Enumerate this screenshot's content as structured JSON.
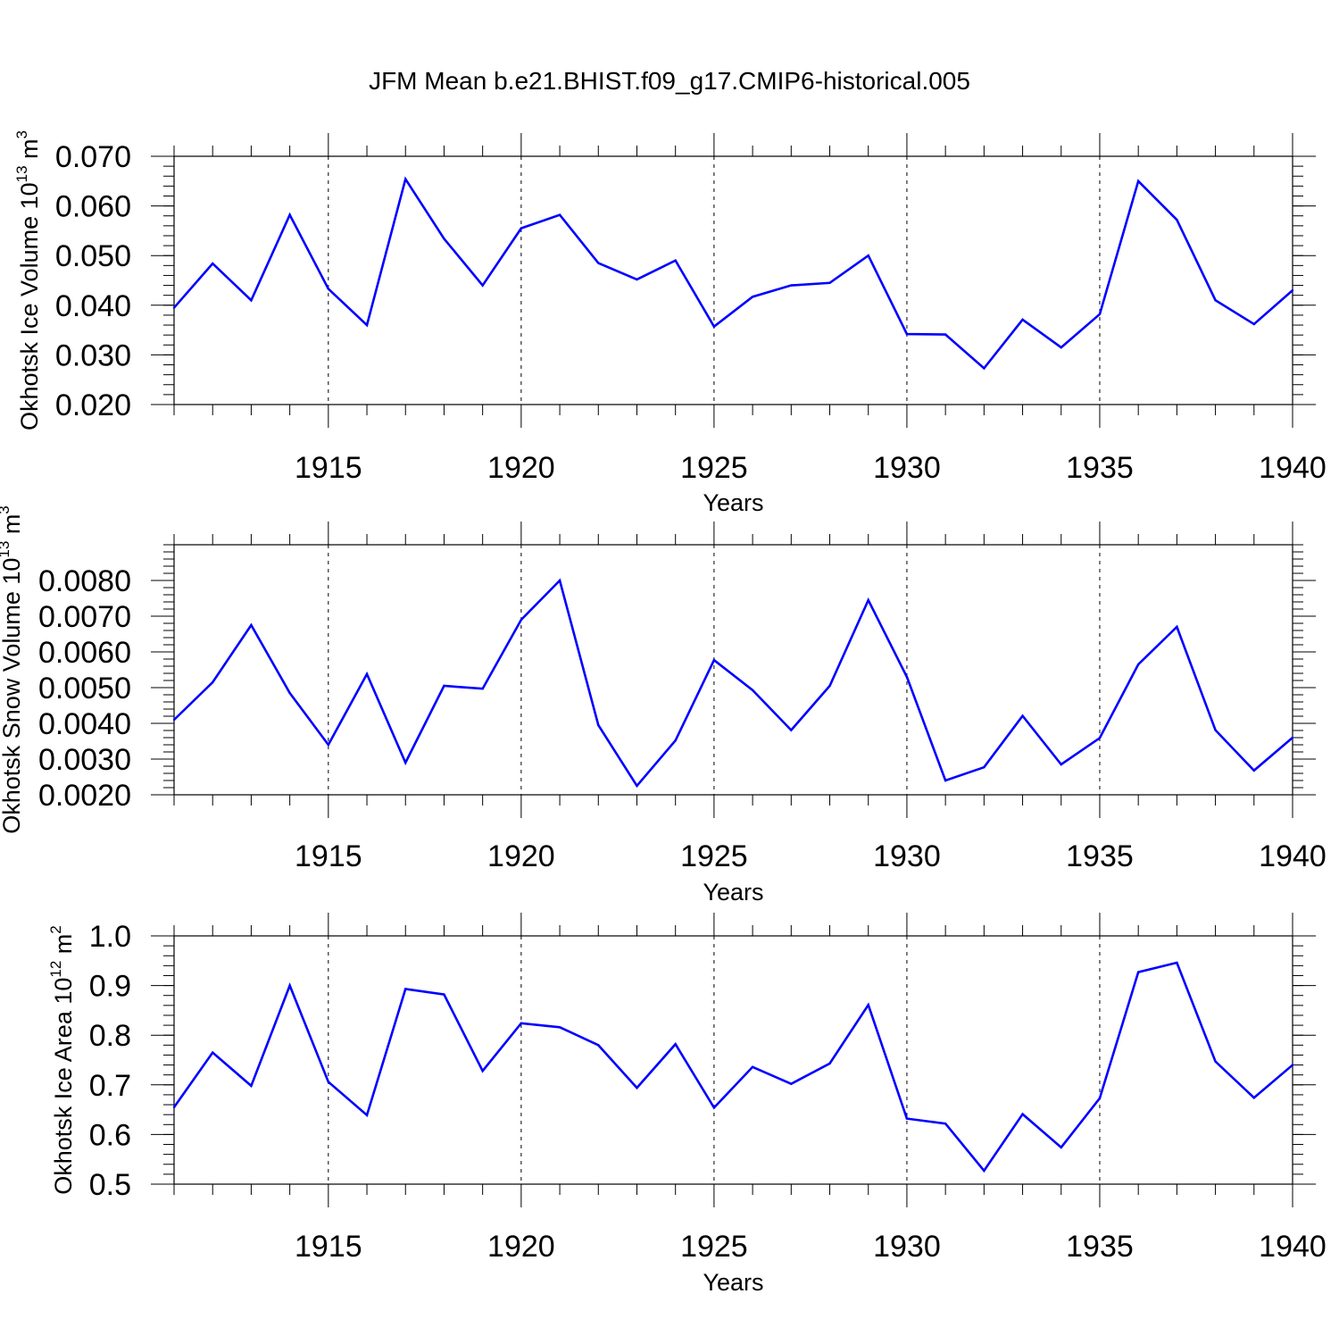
{
  "title": "JFM Mean b.e21.BHIST.f09_g17.CMIP6-historical.005",
  "colors": {
    "line": "#0000ff",
    "axis": "#000000",
    "gridline": "#000000"
  },
  "chart_data": [
    {
      "type": "line",
      "ylabel": {
        "text": "Okhotsk Ice Volume 10",
        "exponent": "13",
        "unit": " m",
        "unit_exponent": "3"
      },
      "xlabel": "Years",
      "xlim": [
        1911,
        1940
      ],
      "ylim": [
        0.02,
        0.07
      ],
      "yticks": [
        0.02,
        0.03,
        0.04,
        0.05,
        0.06,
        0.07
      ],
      "ytick_labels": [
        "0.020",
        "0.030",
        "0.040",
        "0.050",
        "0.060",
        "0.070"
      ],
      "yminor_step": 0.002,
      "xticks": [
        1915,
        1920,
        1925,
        1930,
        1935,
        1940
      ],
      "xtick_labels": [
        "1915",
        "1920",
        "1925",
        "1930",
        "1935",
        "1940"
      ],
      "x": [
        1911,
        1912,
        1913,
        1914,
        1915,
        1916,
        1917,
        1918,
        1919,
        1920,
        1921,
        1922,
        1923,
        1924,
        1925,
        1926,
        1927,
        1928,
        1929,
        1930,
        1931,
        1932,
        1933,
        1934,
        1935,
        1936,
        1937,
        1938,
        1939,
        1940
      ],
      "values": [
        0.0395,
        0.0484,
        0.041,
        0.0582,
        0.0433,
        0.036,
        0.0654,
        0.0534,
        0.044,
        0.0555,
        0.0582,
        0.0485,
        0.0452,
        0.049,
        0.0357,
        0.0417,
        0.044,
        0.0445,
        0.05,
        0.0342,
        0.0341,
        0.0273,
        0.0371,
        0.0315,
        0.0382,
        0.065,
        0.0572,
        0.041,
        0.0362,
        0.043
      ]
    },
    {
      "type": "line",
      "ylabel": {
        "text": "Okhotsk Snow Volume 10",
        "exponent": "13",
        "unit": " m",
        "unit_exponent": "3"
      },
      "xlabel": "Years",
      "xlim": [
        1911,
        1940
      ],
      "ylim": [
        0.002,
        0.009
      ],
      "yticks": [
        0.002,
        0.003,
        0.004,
        0.005,
        0.006,
        0.007,
        0.008
      ],
      "ytick_labels": [
        "0.0020",
        "0.0030",
        "0.0040",
        "0.0050",
        "0.0060",
        "0.0070",
        "0.0080"
      ],
      "yminor_step": 0.0002,
      "xticks": [
        1915,
        1920,
        1925,
        1930,
        1935,
        1940
      ],
      "xtick_labels": [
        "1915",
        "1920",
        "1925",
        "1930",
        "1935",
        "1940"
      ],
      "x": [
        1911,
        1912,
        1913,
        1914,
        1915,
        1916,
        1917,
        1918,
        1919,
        1920,
        1921,
        1922,
        1923,
        1924,
        1925,
        1926,
        1927,
        1928,
        1929,
        1930,
        1931,
        1932,
        1933,
        1934,
        1935,
        1936,
        1937,
        1938,
        1939,
        1940
      ],
      "values": [
        0.0041,
        0.00515,
        0.00675,
        0.00485,
        0.0034,
        0.00538,
        0.0029,
        0.00505,
        0.00497,
        0.0069,
        0.008,
        0.00395,
        0.00225,
        0.00352,
        0.00577,
        0.00493,
        0.00381,
        0.00505,
        0.00745,
        0.0053,
        0.0024,
        0.00277,
        0.00421,
        0.00285,
        0.00359,
        0.00565,
        0.0067,
        0.00381,
        0.00268,
        0.0036
      ]
    },
    {
      "type": "line",
      "ylabel": {
        "text": "Okhotsk Ice Area 10",
        "exponent": "12",
        "unit": " m",
        "unit_exponent": "2"
      },
      "xlabel": "Years",
      "xlim": [
        1911,
        1940
      ],
      "ylim": [
        0.5,
        1.0
      ],
      "yticks": [
        0.5,
        0.6,
        0.7,
        0.8,
        0.9,
        1.0
      ],
      "ytick_labels": [
        "0.5",
        "0.6",
        "0.7",
        "0.8",
        "0.9",
        "1.0"
      ],
      "yminor_step": 0.02,
      "xticks": [
        1915,
        1920,
        1925,
        1930,
        1935,
        1940
      ],
      "xtick_labels": [
        "1915",
        "1920",
        "1925",
        "1930",
        "1935",
        "1940"
      ],
      "x": [
        1911,
        1912,
        1913,
        1914,
        1915,
        1916,
        1917,
        1918,
        1919,
        1920,
        1921,
        1922,
        1923,
        1924,
        1925,
        1926,
        1927,
        1928,
        1929,
        1930,
        1931,
        1932,
        1933,
        1934,
        1935,
        1936,
        1937,
        1938,
        1939,
        1940
      ],
      "values": [
        0.655,
        0.765,
        0.698,
        0.9,
        0.706,
        0.639,
        0.893,
        0.882,
        0.728,
        0.824,
        0.816,
        0.78,
        0.694,
        0.782,
        0.654,
        0.736,
        0.702,
        0.743,
        0.861,
        0.632,
        0.622,
        0.527,
        0.641,
        0.574,
        0.673,
        0.927,
        0.946,
        0.747,
        0.674,
        0.74
      ]
    }
  ]
}
